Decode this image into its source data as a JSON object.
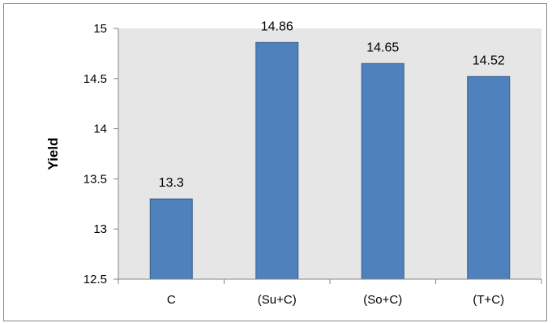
{
  "chart_data": {
    "type": "bar",
    "title": "",
    "xlabel": "",
    "ylabel": "Yield",
    "categories": [
      "C",
      "(Su+C)",
      "(So+C)",
      "(T+C)"
    ],
    "values": [
      13.3,
      14.86,
      14.65,
      14.52
    ],
    "data_labels": [
      "13.3",
      "14.86",
      "14.65",
      "14.52"
    ],
    "ylim": [
      12.5,
      15
    ],
    "yticks": [
      "12.5",
      "13",
      "13.5",
      "14",
      "14.5",
      "15"
    ],
    "grid": false,
    "legend": "none",
    "colors": {
      "bar_fill": "#4f81bd",
      "bar_stroke": "#385d8a",
      "plot_background": "#e6e6e6",
      "axis": "#868686"
    }
  }
}
